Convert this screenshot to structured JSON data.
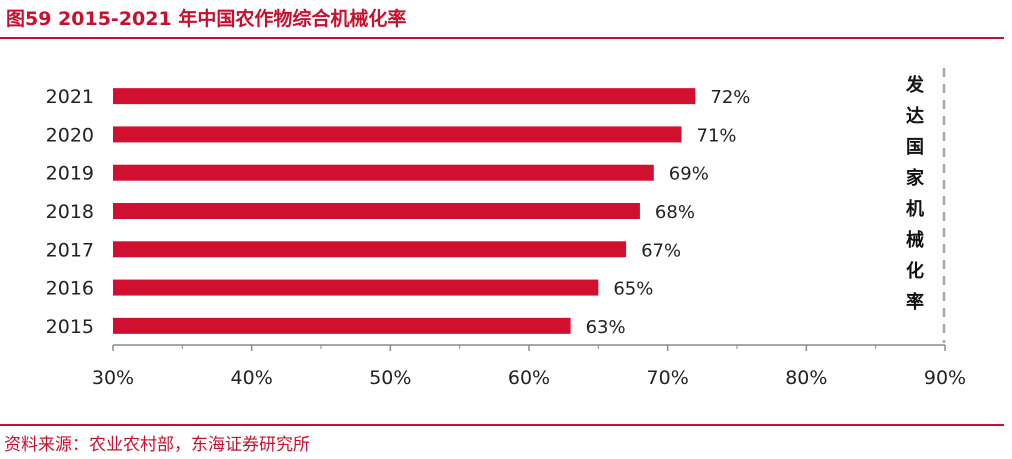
{
  "figure": {
    "title": "图59  2015-2021 年中国农作物综合机械化率",
    "source": "资料来源：农业农村部，东海证券研究所"
  },
  "chart_data": {
    "type": "bar",
    "orientation": "horizontal",
    "categories": [
      "2021",
      "2020",
      "2019",
      "2018",
      "2017",
      "2016",
      "2015"
    ],
    "values": [
      72,
      71,
      69,
      68,
      67,
      65,
      63
    ],
    "data_labels": [
      "72%",
      "71%",
      "69%",
      "68%",
      "67%",
      "65%",
      "63%"
    ],
    "xlim": [
      30,
      90
    ],
    "x_ticks": [
      30,
      40,
      50,
      60,
      70,
      80,
      90
    ],
    "x_tick_labels": [
      "30%",
      "40%",
      "50%",
      "60%",
      "70%",
      "80%",
      "90%"
    ],
    "reference_line": {
      "value": 90,
      "style": "dashed",
      "label": "发达国家机械化率"
    },
    "colors": {
      "bar": "#d0102e",
      "accent": "#c8102e",
      "reference_line": "#aaaaaa"
    },
    "grid": false
  }
}
